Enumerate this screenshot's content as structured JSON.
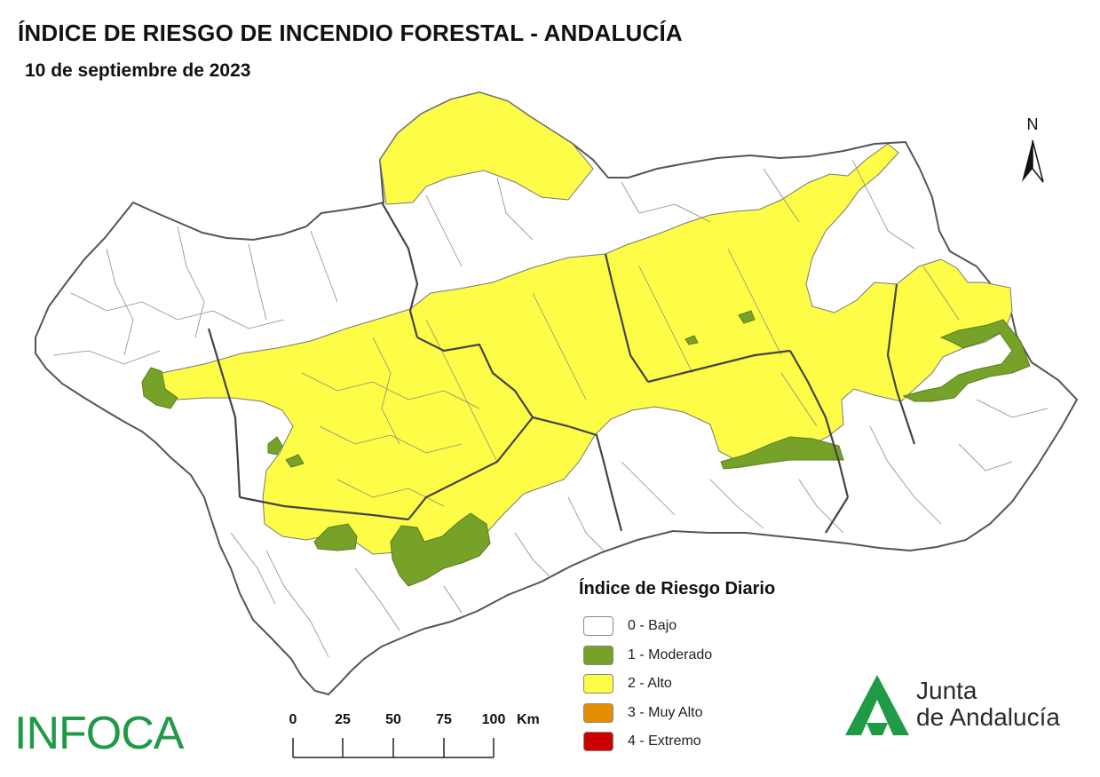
{
  "header": {
    "title": "ÍNDICE DE RIESGO DE INCENDIO FORESTAL - ANDALUCÍA",
    "subtitle": "10 de septiembre de 2023"
  },
  "north_arrow": {
    "label": "N"
  },
  "legend": {
    "title": "Índice de Riesgo Diario",
    "items": [
      {
        "label": "0 - Bajo",
        "color": "#ffffff"
      },
      {
        "label": "1 - Moderado",
        "color": "#76a22a"
      },
      {
        "label": "2 - Alto",
        "color": "#fdfd47"
      },
      {
        "label": "3 - Muy Alto",
        "color": "#e38f00"
      },
      {
        "label": "4 - Extremo",
        "color": "#cc0000"
      }
    ]
  },
  "scale_bar": {
    "ticks": [
      "0",
      "25",
      "50",
      "75",
      "100"
    ],
    "unit": "Km"
  },
  "logos": {
    "infoca": "INFOCA",
    "junta_line1": "Junta",
    "junta_line2": "de Andalucía",
    "junta_color": "#1f9a47"
  },
  "map": {
    "colors": {
      "bajo": "#ffffff",
      "moderado": "#76a22a",
      "alto": "#fdfd47",
      "border": "#555555",
      "province_border": "#444444"
    }
  }
}
